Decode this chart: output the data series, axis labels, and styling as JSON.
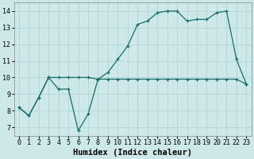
{
  "xlabel": "Humidex (Indice chaleur)",
  "background_color": "#cce8e8",
  "line_color": "#1a6b6b",
  "xlim": [
    -0.5,
    23.5
  ],
  "ylim": [
    6.5,
    14.5
  ],
  "xticks": [
    0,
    1,
    2,
    3,
    4,
    5,
    6,
    7,
    8,
    9,
    10,
    11,
    12,
    13,
    14,
    15,
    16,
    17,
    18,
    19,
    20,
    21,
    22,
    23
  ],
  "yticks": [
    7,
    8,
    9,
    10,
    11,
    12,
    13,
    14
  ],
  "line1_x": [
    0,
    1,
    2,
    3,
    4,
    5,
    6,
    7,
    8,
    9,
    10,
    11,
    12,
    13,
    14,
    15,
    16,
    17,
    18,
    19,
    20,
    21,
    22,
    23
  ],
  "line1_y": [
    8.2,
    7.7,
    8.8,
    10.0,
    9.3,
    9.3,
    6.8,
    7.8,
    9.9,
    10.3,
    11.1,
    11.9,
    13.2,
    13.4,
    13.9,
    14.0,
    14.0,
    13.4,
    13.5,
    13.5,
    13.9,
    14.0,
    11.1,
    9.6
  ],
  "line2_x": [
    0,
    1,
    2,
    3,
    4,
    5,
    6,
    7,
    8,
    9,
    10,
    11,
    12,
    13,
    14,
    15,
    16,
    17,
    18,
    19,
    20,
    21,
    22,
    23
  ],
  "line2_y": [
    8.2,
    7.7,
    8.8,
    10.0,
    10.0,
    10.0,
    10.0,
    10.0,
    9.9,
    9.9,
    9.9,
    9.9,
    9.9,
    9.9,
    9.9,
    9.9,
    9.9,
    9.9,
    9.9,
    9.9,
    9.9,
    9.9,
    9.9,
    9.6
  ],
  "grid_color": "#b8d8d8",
  "tick_fontsize": 6,
  "xlabel_fontsize": 7.5
}
